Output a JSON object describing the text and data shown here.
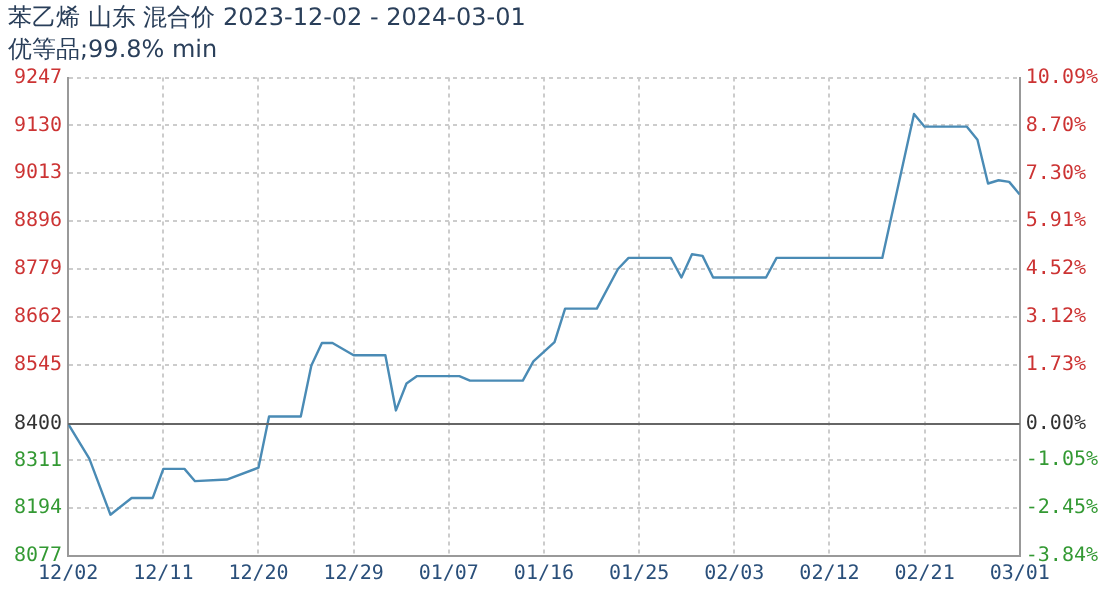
{
  "chart_data": {
    "type": "line",
    "title": "苯乙烯 山东 混合价 2023-12-02 - 2024-03-01",
    "subtitle": "优等品;99.8% min",
    "series": [
      {
        "color": "#4a8bb5",
        "x": [
          "2023-12-02",
          "2023-12-04",
          "2023-12-06",
          "2023-12-08",
          "2023-12-10",
          "2023-12-11",
          "2023-12-13",
          "2023-12-14",
          "2023-12-17",
          "2023-12-20",
          "2023-12-21",
          "2023-12-24",
          "2023-12-25",
          "2023-12-26",
          "2023-12-27",
          "2023-12-29",
          "2024-01-01",
          "2024-01-02",
          "2024-01-03",
          "2024-01-04",
          "2024-01-08",
          "2024-01-09",
          "2024-01-14",
          "2024-01-15",
          "2024-01-17",
          "2024-01-18",
          "2024-01-21",
          "2024-01-23",
          "2024-01-24",
          "2024-01-28",
          "2024-01-29",
          "2024-01-30",
          "2024-01-31",
          "2024-02-01",
          "2024-02-06",
          "2024-02-07",
          "2024-02-17",
          "2024-02-20",
          "2024-02-21",
          "2024-02-25",
          "2024-02-26",
          "2024-02-27",
          "2024-02-28",
          "2024-02-29",
          "2024-03-01"
        ],
        "values": [
          8400,
          8315,
          8178,
          8219,
          8219,
          8290,
          8290,
          8260,
          8264,
          8293,
          8418,
          8418,
          8543,
          8598,
          8598,
          8568,
          8568,
          8433,
          8499,
          8517,
          8517,
          8506,
          8506,
          8553,
          8600,
          8682,
          8682,
          8779,
          8806,
          8806,
          8758,
          8815,
          8811,
          8758,
          8758,
          8806,
          8806,
          9158,
          9127,
          9127,
          9095,
          8988,
          8996,
          8992,
          8961
        ]
      }
    ],
    "xlim": [
      "2023-12-02",
      "2024-03-01"
    ],
    "xticks": [
      {
        "value": "2023-12-02",
        "label": "12/02"
      },
      {
        "value": "2023-12-11",
        "label": "12/11"
      },
      {
        "value": "2023-12-20",
        "label": "12/20"
      },
      {
        "value": "2023-12-29",
        "label": "12/29"
      },
      {
        "value": "2024-01-07",
        "label": "01/07"
      },
      {
        "value": "2024-01-16",
        "label": "01/16"
      },
      {
        "value": "2024-01-25",
        "label": "01/25"
      },
      {
        "value": "2024-02-03",
        "label": "02/03"
      },
      {
        "value": "2024-02-12",
        "label": "02/12"
      },
      {
        "value": "2024-02-21",
        "label": "02/21"
      },
      {
        "value": "2024-03-01",
        "label": "03/01"
      }
    ],
    "ylim": [
      8077,
      9247
    ],
    "yticks": [
      8077,
      8194,
      8311,
      8400,
      8545,
      8662,
      8779,
      8896,
      9013,
      9130,
      9247
    ],
    "y2lim": [
      -3.84,
      10.09
    ],
    "y2ticks": [
      {
        "value": -3.84,
        "label": "-3.84%"
      },
      {
        "value": -2.45,
        "label": "-2.45%"
      },
      {
        "value": -1.05,
        "label": "-1.05%"
      },
      {
        "value": 0,
        "label": "0.00%"
      },
      {
        "value": 1.73,
        "label": "1.73%"
      },
      {
        "value": 3.12,
        "label": "3.12%"
      },
      {
        "value": 4.52,
        "label": "4.52%"
      },
      {
        "value": 5.91,
        "label": "5.91%"
      },
      {
        "value": 7.3,
        "label": "7.30%"
      },
      {
        "value": 8.7,
        "label": "8.70%"
      },
      {
        "value": 10.09,
        "label": "10.09%"
      }
    ],
    "ref_lines": [
      {
        "axis": "y",
        "value": 8400,
        "color": "#666666"
      }
    ],
    "grid": true,
    "legend": false,
    "marker": "none",
    "line_style": "solid"
  }
}
